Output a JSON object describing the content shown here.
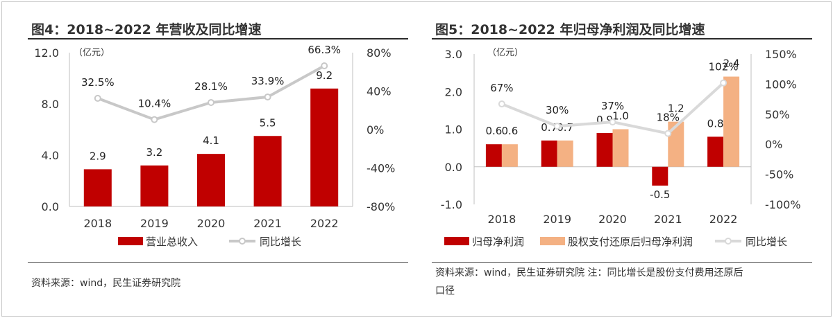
{
  "figures": [
    {
      "title": "图4：2018~2022 年营收及同比增速",
      "source": "资料来源：wind，民生证券研究院",
      "chart_data": {
        "type": "bar+line",
        "categories": [
          "2018",
          "2019",
          "2020",
          "2021",
          "2022"
        ],
        "unit_label": "（亿元）",
        "y_left": {
          "min": 0.0,
          "max": 12.0,
          "ticks": [
            "0.0",
            "4.0",
            "8.0",
            "12.0"
          ],
          "tick_values": [
            0,
            4,
            8,
            12
          ]
        },
        "y_right": {
          "min": -80,
          "max": 80,
          "ticks": [
            "-80%",
            "-40%",
            "0%",
            "40%",
            "80%"
          ],
          "tick_values": [
            -80,
            -40,
            0,
            40,
            80
          ]
        },
        "bars": [
          {
            "name": "营业总收入",
            "color": "#c00000",
            "values": [
              2.9,
              3.2,
              4.1,
              5.5,
              9.2
            ],
            "labels": [
              "2.9",
              "3.2",
              "4.1",
              "5.5",
              "9.2"
            ]
          }
        ],
        "line": {
          "name": "同比增长",
          "color": "#c8c8c8",
          "values": [
            32.5,
            10.4,
            28.1,
            33.9,
            66.3
          ],
          "labels": [
            "32.5%",
            "10.4%",
            "28.1%",
            "33.9%",
            "66.3%"
          ]
        },
        "legend_position": "bottom"
      }
    },
    {
      "title": "图5：2018~2022 年归母净利润及同比增速",
      "source": "资料来源：wind，民生证券研究院   注：同比增长是股份支付费用还原后",
      "source_line2": "口径",
      "chart_data": {
        "type": "bar+line",
        "categories": [
          "2018",
          "2019",
          "2020",
          "2021",
          "2022"
        ],
        "unit_label": "（亿元）",
        "y_left": {
          "min": -1.0,
          "max": 3.0,
          "ticks": [
            "-1.0",
            "0.0",
            "1.0",
            "2.0",
            "3.0"
          ],
          "tick_values": [
            -1,
            0,
            1,
            2,
            3
          ]
        },
        "y_right": {
          "min": -100,
          "max": 150,
          "ticks": [
            "-100%",
            "-50%",
            "0%",
            "50%",
            "100%",
            "150%"
          ],
          "tick_values": [
            -100,
            -50,
            0,
            50,
            100,
            150
          ]
        },
        "bars": [
          {
            "name": "归母净利润",
            "color": "#c00000",
            "values": [
              0.6,
              0.7,
              0.9,
              -0.5,
              0.8
            ],
            "labels": [
              "0.6",
              "0.7",
              "0.9",
              "-0.5",
              "0.8"
            ]
          },
          {
            "name": "股权支付还原后归母净利润",
            "color": "#f4b183",
            "values": [
              0.6,
              0.7,
              1.0,
              1.2,
              2.4
            ],
            "labels": [
              "0.6",
              "0.7",
              "1.0",
              "1.2",
              "2.4"
            ]
          }
        ],
        "line": {
          "name": "同比增长",
          "color": "#d9d9d9",
          "values": [
            67,
            30,
            37,
            18,
            102
          ],
          "labels": [
            "67%",
            "30%",
            "37%",
            "18%",
            "102%"
          ]
        },
        "legend_position": "bottom"
      }
    }
  ]
}
